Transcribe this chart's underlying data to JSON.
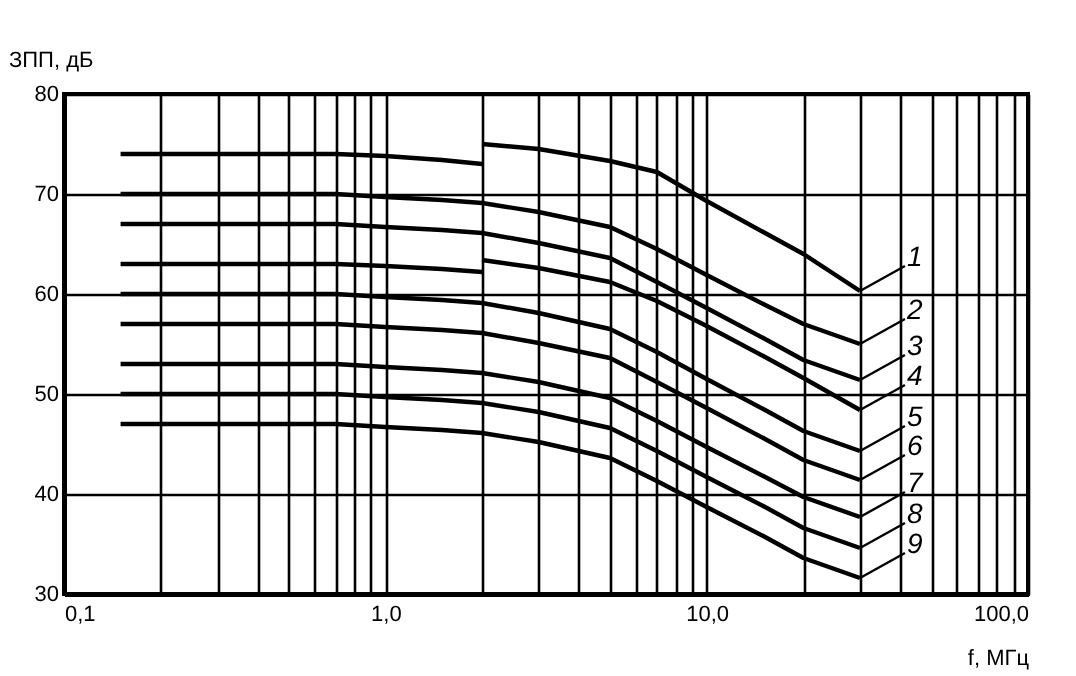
{
  "chart_data": {
    "type": "line",
    "ylabel": "ЗПП, дБ",
    "xlabel": "f, МГц",
    "log": "x",
    "x": [
      0.15,
      0.3,
      0.5,
      0.7,
      1,
      1.5,
      2,
      3,
      5,
      7,
      10,
      15,
      20,
      30
    ],
    "xlim": [
      0.1,
      100
    ],
    "ylim": [
      30,
      80
    ],
    "xticks": [
      {
        "value": 0.1,
        "label": "0,1"
      },
      {
        "value": 0.2,
        "label": null
      },
      {
        "value": 0.3,
        "label": null
      },
      {
        "value": 0.4,
        "label": null
      },
      {
        "value": 0.5,
        "label": null
      },
      {
        "value": 0.6,
        "label": null
      },
      {
        "value": 0.7,
        "label": null
      },
      {
        "value": 0.8,
        "label": null
      },
      {
        "value": 0.9,
        "label": null
      },
      {
        "value": 1,
        "label": "1,0"
      },
      {
        "value": 2,
        "label": null
      },
      {
        "value": 3,
        "label": null
      },
      {
        "value": 4,
        "label": null
      },
      {
        "value": 5,
        "label": null
      },
      {
        "value": 6,
        "label": null
      },
      {
        "value": 7,
        "label": null
      },
      {
        "value": 8,
        "label": null
      },
      {
        "value": 9,
        "label": null
      },
      {
        "value": 10,
        "label": "10,0"
      },
      {
        "value": 20,
        "label": null
      },
      {
        "value": 30,
        "label": null
      },
      {
        "value": 40,
        "label": null
      },
      {
        "value": 50,
        "label": null
      },
      {
        "value": 60,
        "label": null
      },
      {
        "value": 70,
        "label": null
      },
      {
        "value": 80,
        "label": null
      },
      {
        "value": 90,
        "label": null
      },
      {
        "value": 100,
        "label": "100,0"
      }
    ],
    "yticks": [
      30,
      40,
      50,
      60,
      70,
      80
    ],
    "grid": true,
    "legend": "right",
    "marker": "none",
    "line_style": "solid",
    "series": [
      {
        "color": "#000000",
        "x": [
          0.15,
          0.3,
          0.5,
          0.7,
          1,
          1.5,
          2
        ],
        "values": [
          74,
          74,
          74,
          74,
          73.8,
          73.4,
          73.0
        ]
      },
      {
        "name": "1",
        "color": "#000000",
        "x": [
          2,
          3,
          5,
          7,
          10,
          15,
          20,
          30
        ],
        "values": [
          75,
          74.5,
          73.3,
          72.2,
          69.3,
          66.2,
          64,
          60.3
        ]
      },
      {
        "name": "2",
        "color": "#000000",
        "values": [
          70,
          70,
          70,
          70,
          69.7,
          69.4,
          69.1,
          68.2,
          66.7,
          64.5,
          61.9,
          59,
          57,
          55
        ]
      },
      {
        "name": "3",
        "color": "#000000",
        "values": [
          67,
          67,
          67,
          67,
          66.7,
          66.4,
          66.1,
          65.1,
          63.6,
          61.2,
          58.6,
          55.6,
          53.4,
          51.4
        ]
      },
      {
        "color": "#000000",
        "x": [
          0.15,
          0.3,
          0.5,
          0.7,
          1,
          1.5,
          2
        ],
        "values": [
          63,
          63,
          63,
          63,
          62.8,
          62.5,
          62.2
        ]
      },
      {
        "name": "4",
        "color": "#000000",
        "x": [
          2,
          3,
          5,
          7,
          10,
          15,
          20,
          30
        ],
        "values": [
          63.4,
          62.6,
          61.2,
          59.3,
          56.8,
          53.8,
          51.6,
          48.4
        ]
      },
      {
        "name": "5",
        "color": "#000000",
        "values": [
          60,
          60,
          60,
          60,
          59.7,
          59.4,
          59.1,
          58.1,
          56.5,
          54.2,
          51.5,
          48.5,
          46.3,
          44.3
        ]
      },
      {
        "name": "6",
        "color": "#000000",
        "values": [
          57,
          57,
          57,
          57,
          56.7,
          56.4,
          56.1,
          55.1,
          53.6,
          51.2,
          48.6,
          45.6,
          43.4,
          41.4
        ]
      },
      {
        "name": "7",
        "color": "#000000",
        "values": [
          53,
          53,
          53,
          53,
          52.7,
          52.4,
          52.1,
          51.2,
          49.6,
          47.3,
          44.7,
          41.8,
          39.7,
          37.7
        ]
      },
      {
        "name": "8",
        "color": "#000000",
        "values": [
          50,
          50,
          50,
          50,
          49.7,
          49.4,
          49.1,
          48.2,
          46.6,
          44.3,
          41.7,
          38.8,
          36.6,
          34.6
        ]
      },
      {
        "name": "9",
        "color": "#000000",
        "values": [
          47,
          47,
          47,
          47,
          46.7,
          46.4,
          46.1,
          45.2,
          43.6,
          41.3,
          38.7,
          35.8,
          33.6,
          31.6
        ]
      }
    ]
  }
}
